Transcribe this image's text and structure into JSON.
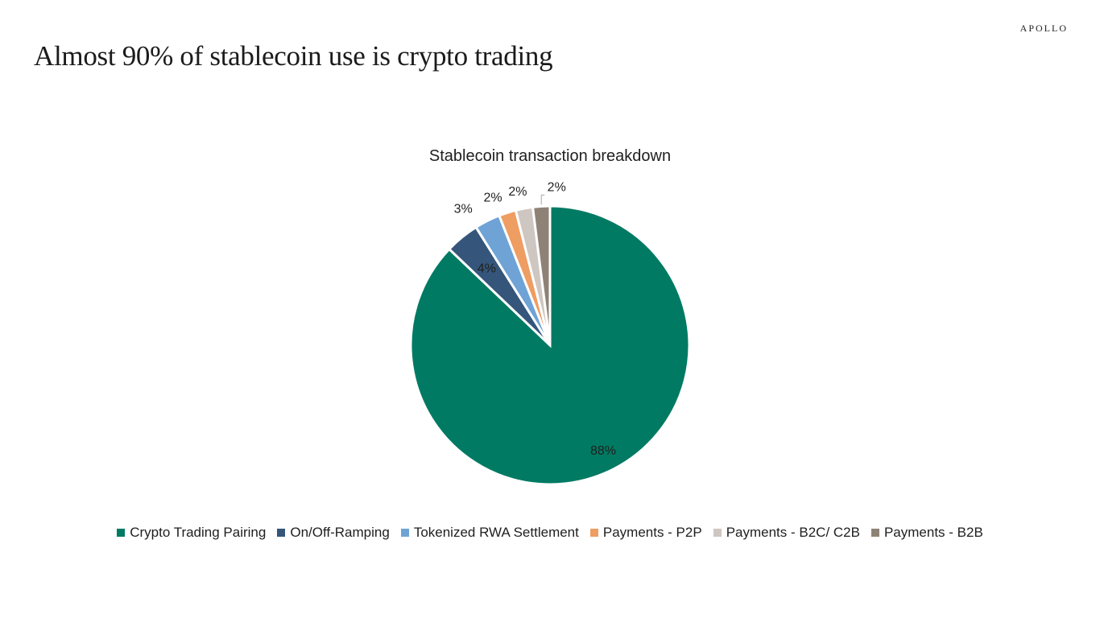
{
  "header": {
    "brand": "APOLLO",
    "headline": "Almost 90% of stablecoin use is crypto trading"
  },
  "chart_data": {
    "type": "pie",
    "title": "Stablecoin transaction breakdown",
    "slices": [
      {
        "name": "Crypto Trading Pairing",
        "value": 88,
        "label": "88%",
        "color": "#007A63"
      },
      {
        "name": "On/Off-Ramping",
        "value": 4,
        "label": "4%",
        "color": "#35567A"
      },
      {
        "name": "Tokenized RWA Settlement",
        "value": 3,
        "label": "3%",
        "color": "#6FA3D6"
      },
      {
        "name": "Payments - P2P",
        "value": 2,
        "label": "2%",
        "color": "#EE9D63"
      },
      {
        "name": "Payments - B2C/ C2B",
        "value": 2,
        "label": "2%",
        "color": "#CEC6C1"
      },
      {
        "name": "Payments - B2B",
        "value": 2,
        "label": "2%",
        "color": "#8E8276"
      }
    ],
    "start_angle": "12 o'clock",
    "direction": "clockwise",
    "legend_position": "bottom"
  }
}
